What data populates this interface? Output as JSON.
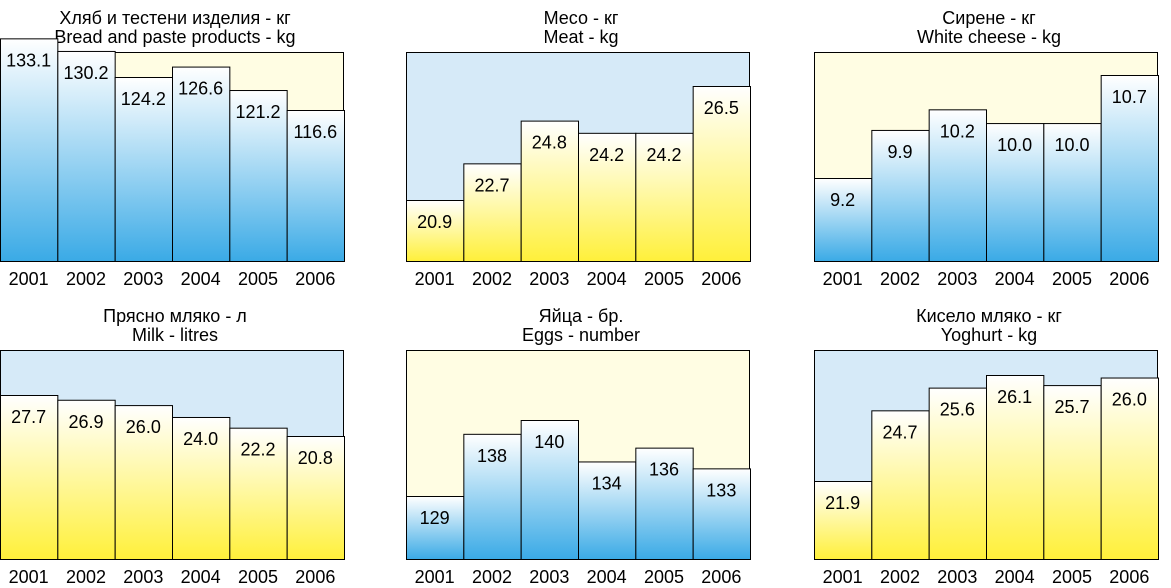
{
  "chart_data": [
    {
      "type": "bar",
      "title": "Хляб и тестени изделия - кг",
      "subtitle": "Bread and paste products - kg",
      "categories": [
        "2001",
        "2002",
        "2003",
        "2004",
        "2005",
        "2006"
      ],
      "values": [
        133.1,
        130.2,
        124.2,
        126.6,
        121.2,
        116.6
      ],
      "bar_color": "blue-gradient",
      "background_color": "#FFFDE3"
    },
    {
      "type": "bar",
      "title": "Месо - кг",
      "subtitle": "Meat - kg",
      "categories": [
        "2001",
        "2002",
        "2003",
        "2004",
        "2005",
        "2006"
      ],
      "values": [
        20.9,
        22.7,
        24.8,
        24.2,
        24.2,
        26.5
      ],
      "bar_color": "yellow-gradient",
      "background_color": "#D6EAF8"
    },
    {
      "type": "bar",
      "title": "Сирене - кг",
      "subtitle": "White cheese - kg",
      "categories": [
        "2001",
        "2002",
        "2003",
        "2004",
        "2005",
        "2006"
      ],
      "values": [
        9.2,
        9.9,
        10.2,
        10.0,
        10.0,
        10.7
      ],
      "bar_color": "blue-gradient",
      "background_color": "#FFFDE3"
    },
    {
      "type": "bar",
      "title": "Прясно мляко - л",
      "subtitle": "Milk - litres",
      "categories": [
        "2001",
        "2002",
        "2003",
        "2004",
        "2005",
        "2006"
      ],
      "values": [
        27.7,
        26.9,
        26.0,
        24.0,
        22.2,
        20.8
      ],
      "bar_color": "yellow-gradient",
      "background_color": "#D6EAF8"
    },
    {
      "type": "bar",
      "title": "Яйца - бр.",
      "subtitle": "Eggs - number",
      "categories": [
        "2001",
        "2002",
        "2003",
        "2004",
        "2005",
        "2006"
      ],
      "values": [
        129,
        138,
        140,
        134,
        136,
        133
      ],
      "bar_color": "blue-gradient",
      "background_color": "#FFFDE3"
    },
    {
      "type": "bar",
      "title": "Кисело мляко - кг",
      "subtitle": "Yoghurt - kg",
      "categories": [
        "2001",
        "2002",
        "2003",
        "2004",
        "2005",
        "2006"
      ],
      "values": [
        21.9,
        24.7,
        25.6,
        26.1,
        25.7,
        26.0
      ],
      "bar_color": "yellow-gradient",
      "background_color": "#D6EAF8"
    }
  ]
}
